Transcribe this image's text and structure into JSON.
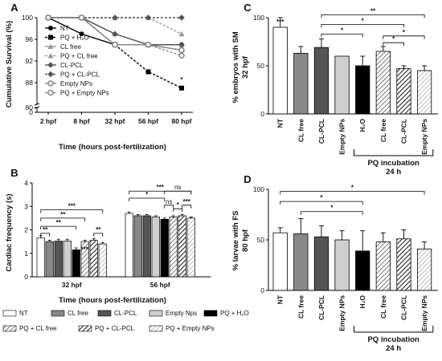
{
  "chart_data": [
    {
      "id": "A",
      "type": "line",
      "panel_label": "A",
      "ylabel": "Cumulative Survival (%)",
      "xlabel": "Time (hours post-fertilization)",
      "categories": [
        "2 hpf",
        "8 hpf",
        "32 hpf",
        "56 hpf",
        "80 hpf"
      ],
      "ylim": [
        0,
        100
      ],
      "yaxis_break": [
        80,
        84
      ],
      "yticks": [
        "0",
        "80",
        "88",
        "92",
        "96",
        "100"
      ],
      "series": [
        {
          "name": "NT",
          "values": [
            100,
            97,
            95,
            95,
            95
          ],
          "color": "#000000",
          "marker": "circle",
          "dash": "solid"
        },
        {
          "name": "PQ + H₂O",
          "values": [
            100,
            100,
            95,
            90,
            87
          ],
          "color": "#000000",
          "marker": "square",
          "dash": "dash"
        },
        {
          "name": "CL free",
          "values": [
            100,
            100,
            97,
            95,
            95
          ],
          "color": "#999999",
          "marker": "triangle",
          "dash": "solid"
        },
        {
          "name": "PQ + CL free",
          "values": [
            100,
            100,
            100,
            100,
            97
          ],
          "color": "#999999",
          "marker": "triangle",
          "dash": "dash"
        },
        {
          "name": "CL-PCL",
          "values": [
            100,
            100,
            97,
            95,
            95
          ],
          "color": "#555555",
          "marker": "diamond",
          "dash": "solid"
        },
        {
          "name": "PQ + CL-PCL",
          "values": [
            100,
            100,
            100,
            100,
            100
          ],
          "color": "#555555",
          "marker": "diamond",
          "dash": "dash"
        },
        {
          "name": "Empty NPs",
          "values": [
            100,
            100,
            95,
            95,
            94
          ],
          "color": "#888888",
          "marker": "circle-open",
          "dash": "solid"
        },
        {
          "name": "PQ + Empty NPs",
          "values": [
            100,
            100,
            95,
            95,
            93
          ],
          "color": "#888888",
          "marker": "circle-open",
          "dash": "dash"
        }
      ],
      "annotations": [
        "*"
      ]
    },
    {
      "id": "B",
      "type": "bar",
      "panel_label": "B",
      "ylabel": "Cardiac frequency (s)",
      "xlabel": "Time (hours post-fertilization)",
      "categories": [
        "32 hpf",
        "56 hpf"
      ],
      "ylim": [
        0,
        4
      ],
      "yticks": [
        "0",
        "1",
        "2",
        "3",
        "4"
      ],
      "series": [
        {
          "name": "NT",
          "values": [
            1.65,
            2.7
          ],
          "errors": [
            0.1,
            0.06
          ]
        },
        {
          "name": "CL free",
          "values": [
            1.5,
            2.6
          ],
          "errors": [
            0.06,
            0.05
          ]
        },
        {
          "name": "CL-PCL",
          "values": [
            1.52,
            2.6
          ],
          "errors": [
            0.08,
            0.05
          ]
        },
        {
          "name": "Empty Nps",
          "values": [
            1.52,
            2.55
          ],
          "errors": [
            0.08,
            0.05
          ]
        },
        {
          "name": "PQ + H₂O",
          "values": [
            1.15,
            2.45
          ],
          "errors": [
            0.08,
            0.05
          ]
        },
        {
          "name": "PQ + CL free",
          "values": [
            1.5,
            2.55
          ],
          "errors": [
            0.06,
            0.05
          ]
        },
        {
          "name": "PQ + CL-PCL",
          "values": [
            1.55,
            2.6
          ],
          "errors": [
            0.08,
            0.06
          ]
        },
        {
          "name": "PQ + Empty NPs",
          "values": [
            1.4,
            2.5
          ],
          "errors": [
            0.06,
            0.05
          ]
        }
      ],
      "annotations": [
        "**",
        "***",
        "**",
        "***",
        "**",
        "***",
        "*",
        "ns",
        "ns",
        "*",
        "***"
      ],
      "legend": [
        "NT",
        "CL free",
        "CL-PCL",
        "Empty Nps",
        "PQ + H₂O",
        "PQ + CL free",
        "PQ + CL-PCL",
        "PQ + Empty NPs"
      ]
    },
    {
      "id": "C",
      "type": "bar",
      "panel_label": "C",
      "ylabel": "% embryos with SM",
      "ylabel2": "32 hpf",
      "categories": [
        "NT",
        "CL free",
        "CL-PCL",
        "Empty NPs",
        "H₂O",
        "CL free",
        "CL-PCL",
        "Empty NPs"
      ],
      "values": [
        90,
        63,
        69,
        60,
        50,
        65,
        47,
        45
      ],
      "errors": [
        10,
        7,
        9,
        0,
        10,
        5,
        3,
        5
      ],
      "ylim": [
        0,
        100
      ],
      "yticks": [
        "0",
        "50",
        "100"
      ],
      "group_label": "PQ incubation",
      "group_sublabel": "24 h",
      "annotations": [
        "***",
        "**",
        "*",
        "*",
        "*",
        "*"
      ]
    },
    {
      "id": "D",
      "type": "bar",
      "panel_label": "D",
      "ylabel": "% larvae with FS",
      "ylabel2": "80 hpf",
      "categories": [
        "NT",
        "CL free",
        "CL-PCL",
        "Empty NPs",
        "H₂O",
        "CL free",
        "CL-PCL",
        "Empty NPs"
      ],
      "values": [
        57,
        56,
        53,
        50,
        39,
        48,
        51,
        41
      ],
      "errors": [
        5,
        15,
        11,
        9,
        20,
        9,
        9,
        7
      ],
      "ylim": [
        0,
        100
      ],
      "yticks": [
        "0",
        "50",
        "100"
      ],
      "group_label": "PQ incubation",
      "group_sublabel": "24 h",
      "annotations": [
        "*",
        "*",
        "*"
      ]
    }
  ]
}
